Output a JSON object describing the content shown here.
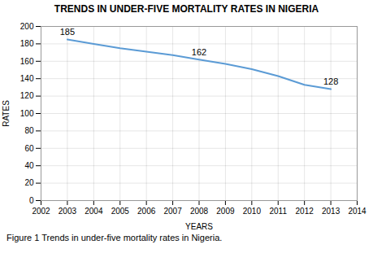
{
  "chart_data": {
    "type": "line",
    "title": "TRENDS IN UNDER-FIVE MORTALITY RATES IN NIGERIA",
    "xlabel": "YEARS",
    "ylabel": "RATES",
    "caption": "Figure 1 Trends in under-five mortality rates in Nigeria.",
    "x": [
      2003,
      2004,
      2005,
      2006,
      2007,
      2008,
      2009,
      2010,
      2011,
      2012,
      2013
    ],
    "values": [
      185,
      180,
      175,
      171,
      167,
      162,
      157,
      151,
      143,
      133,
      128
    ],
    "color": "#5b9bd5",
    "xlim": [
      2002,
      2014
    ],
    "xticks": [
      2002,
      2003,
      2004,
      2005,
      2006,
      2007,
      2008,
      2009,
      2010,
      2011,
      2012,
      2013,
      2014
    ],
    "ylim": [
      0,
      200
    ],
    "yticks": [
      0,
      20,
      40,
      60,
      80,
      100,
      120,
      140,
      160,
      180,
      200
    ],
    "grid": true,
    "annotations": [
      {
        "x": 2003,
        "y": 185,
        "label": "185"
      },
      {
        "x": 2008,
        "y": 162,
        "label": "162"
      },
      {
        "x": 2013,
        "y": 128,
        "label": "128"
      }
    ]
  }
}
